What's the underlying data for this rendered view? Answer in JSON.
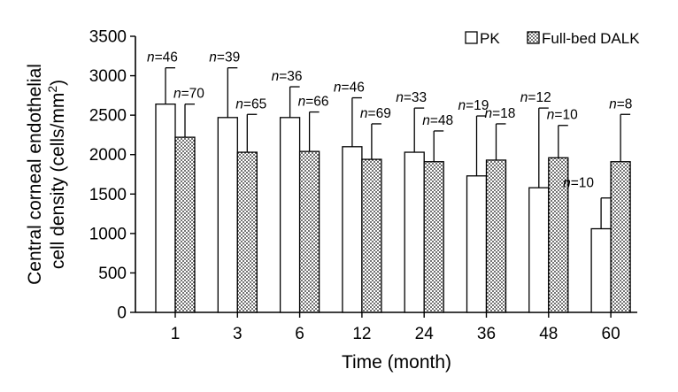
{
  "chart_data": {
    "type": "bar",
    "categories": [
      "1",
      "3",
      "6",
      "12",
      "24",
      "36",
      "48",
      "60"
    ],
    "xlabel": "Time (month)",
    "ylabel_line1": "Central corneal endothelial",
    "ylabel_line2_prefix": "cell density (cells/mm",
    "ylabel_line2_sup": "2",
    "ylabel_line2_suffix": ")",
    "ylim": [
      0,
      3500
    ],
    "yticks": [
      "0",
      "500",
      "1000",
      "1500",
      "2000",
      "2500",
      "3000",
      "3500"
    ],
    "legend_position": "top-right",
    "grid": false,
    "series": [
      {
        "name": "PK",
        "pattern": "open",
        "values": [
          2640,
          2470,
          2470,
          2100,
          2030,
          1730,
          1580,
          1060
        ],
        "error": [
          460,
          630,
          390,
          620,
          560,
          760,
          1010,
          390
        ],
        "n_labels": [
          "46",
          "39",
          "36",
          "46",
          "33",
          "19",
          "12",
          "10"
        ]
      },
      {
        "name": "Full-bed DALK",
        "pattern": "dotted",
        "values": [
          2220,
          2030,
          2040,
          1940,
          1910,
          1930,
          1960,
          1910
        ],
        "error": [
          420,
          480,
          500,
          450,
          390,
          460,
          410,
          600
        ],
        "n_labels": [
          "70",
          "65",
          "66",
          "69",
          "48",
          "18",
          "10",
          "8"
        ]
      }
    ],
    "n_prefix": "n",
    "n_equals": "="
  },
  "colors": {
    "axis": "#000000",
    "bar_fill": "#ffffff",
    "dot_fill": "#000000"
  }
}
